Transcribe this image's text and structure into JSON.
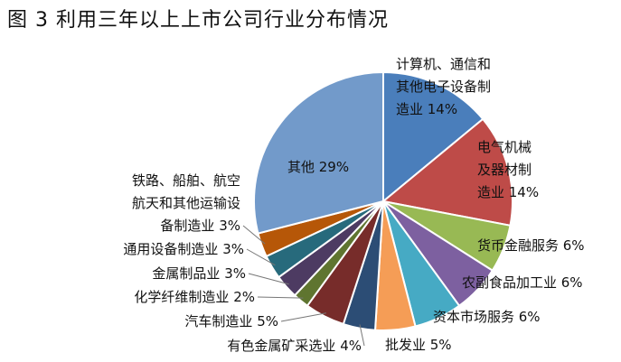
{
  "title": "图 3 利用三年以上上市公司行业分布情况",
  "chart_data": {
    "type": "pie",
    "title": "图 3 利用三年以上上市公司行业分布情况",
    "start_angle_deg": 0,
    "direction": "clockwise",
    "slices": [
      {
        "label_lines": [
          "计算机、通信和",
          "其他电子设备制",
          "造业 14%"
        ],
        "name": "计算机、通信和其他电子设备制造业",
        "value": 14,
        "color": "#4a7ebb"
      },
      {
        "label_lines": [
          "电气机械",
          "及器材制",
          "造业 14%"
        ],
        "name": "电气机械及器材制造业",
        "value": 14,
        "color": "#be4b48"
      },
      {
        "label_lines": [
          "货币金融服务 6%"
        ],
        "name": "货币金融服务",
        "value": 6,
        "color": "#98b954"
      },
      {
        "label_lines": [
          "农副食品加工业 6%"
        ],
        "name": "农副食品加工业",
        "value": 6,
        "color": "#7d60a0"
      },
      {
        "label_lines": [
          "资本市场服务 6%"
        ],
        "name": "资本市场服务",
        "value": 6,
        "color": "#46aac4"
      },
      {
        "label_lines": [
          "批发业 5%"
        ],
        "name": "批发业",
        "value": 5,
        "color": "#f59d56"
      },
      {
        "label_lines": [
          "有色金属矿采选业 4%"
        ],
        "name": "有色金属矿采选业",
        "value": 4,
        "color": "#2c4d75"
      },
      {
        "label_lines": [
          "汽车制造业 5%"
        ],
        "name": "汽车制造业",
        "value": 5,
        "color": "#772c2a"
      },
      {
        "label_lines": [
          "化学纤维制造业 2%"
        ],
        "name": "化学纤维制造业",
        "value": 2,
        "color": "#5f7530"
      },
      {
        "label_lines": [
          "金属制品业 3%"
        ],
        "name": "金属制品业",
        "value": 3,
        "color": "#4d3b62"
      },
      {
        "label_lines": [
          "通用设备制造业 3%"
        ],
        "name": "通用设备制造业",
        "value": 3,
        "color": "#276a7c"
      },
      {
        "label_lines": [
          "铁路、船舶、航空",
          "航天和其他运输设",
          "备制造业 3%"
        ],
        "name": "铁路、船舶、航空航天和其他运输设备制造业",
        "value": 3,
        "color": "#b65708"
      },
      {
        "label_lines": [
          "其他 29%"
        ],
        "name": "其他",
        "value": 29,
        "color": "#729aca"
      }
    ]
  }
}
